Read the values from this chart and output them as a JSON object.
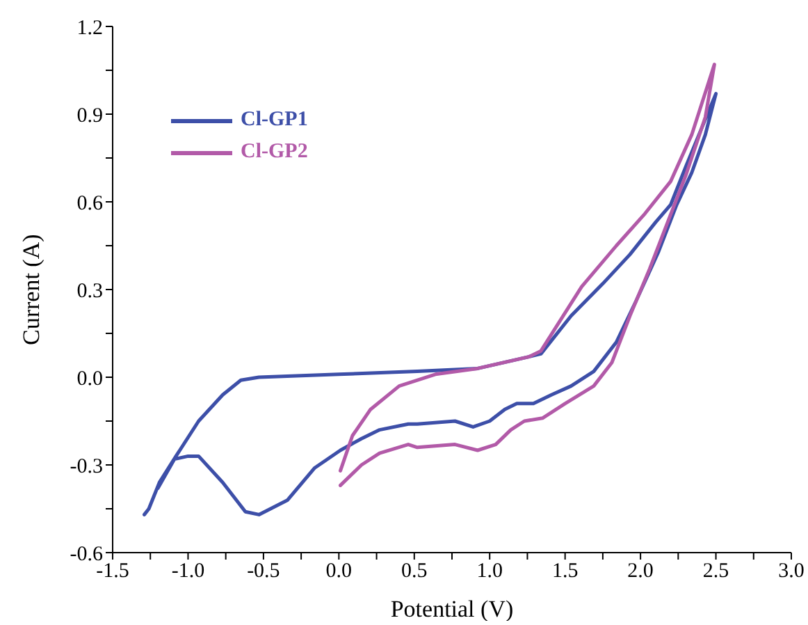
{
  "chart_data": {
    "type": "line",
    "xlabel": "Potential (V)",
    "ylabel": "Current (A)",
    "xlim": [
      -1.5,
      3.0
    ],
    "ylim": [
      -0.6,
      1.2
    ],
    "xticks": [
      {
        "value": -1.5,
        "label": "-1.5"
      },
      {
        "value": -1.25,
        "label": null
      },
      {
        "value": -1.0,
        "label": "-1.0"
      },
      {
        "value": -0.75,
        "label": null
      },
      {
        "value": -0.5,
        "label": "-0.5"
      },
      {
        "value": -0.25,
        "label": null
      },
      {
        "value": 0,
        "label": "0.0"
      },
      {
        "value": 0.25,
        "label": null
      },
      {
        "value": 0.5,
        "label": "0.5"
      },
      {
        "value": 0.75,
        "label": null
      },
      {
        "value": 1.0,
        "label": "1.0"
      },
      {
        "value": 1.25,
        "label": null
      },
      {
        "value": 1.5,
        "label": "1.5"
      },
      {
        "value": 1.75,
        "label": null
      },
      {
        "value": 2.0,
        "label": "2.0"
      },
      {
        "value": 2.25,
        "label": null
      },
      {
        "value": 2.5,
        "label": "2.5"
      },
      {
        "value": 2.75,
        "label": null
      },
      {
        "value": 3.0,
        "label": "3.0"
      }
    ],
    "yticks": [
      {
        "value": -0.6,
        "label": "-0.6"
      },
      {
        "value": -0.45,
        "label": null
      },
      {
        "value": -0.3,
        "label": "-0.3"
      },
      {
        "value": -0.15,
        "label": null
      },
      {
        "value": 0,
        "label": "0.0"
      },
      {
        "value": 0.15,
        "label": null
      },
      {
        "value": 0.3,
        "label": "0.3"
      },
      {
        "value": 0.45,
        "label": null
      },
      {
        "value": 0.6,
        "label": "0.6"
      },
      {
        "value": 0.75,
        "label": null
      },
      {
        "value": 0.9,
        "label": "0.9"
      },
      {
        "value": 1.05,
        "label": null
      },
      {
        "value": 1.2,
        "label": "1.2"
      }
    ],
    "grid": false,
    "legend": "top left",
    "marker": "none",
    "line_style": "solid",
    "series": [
      {
        "name": "Cl-GP1",
        "color": "#3d4fa8",
        "x": [
          -1.29,
          -1.26,
          -1.19,
          -1.08,
          -0.93,
          -0.77,
          -0.65,
          -0.53,
          0.0,
          0.52,
          0.92,
          1.26,
          1.34,
          1.54,
          1.75,
          1.93,
          2.1,
          2.2,
          2.3,
          2.5,
          2.43,
          2.34,
          2.24,
          2.12,
          1.97,
          1.84,
          1.69,
          1.54,
          1.41,
          1.29,
          1.18,
          1.1,
          1.0,
          0.89,
          0.77,
          0.52,
          0.46,
          0.27,
          0.15,
          0.01,
          -0.16,
          -0.34,
          -0.53,
          -0.62,
          -0.77,
          -0.93,
          -1.0,
          -1.09,
          -1.2
        ],
        "values": [
          -0.47,
          -0.45,
          -0.36,
          -0.27,
          -0.15,
          -0.06,
          -0.01,
          0.0,
          0.01,
          0.02,
          0.03,
          0.07,
          0.08,
          0.21,
          0.32,
          0.42,
          0.53,
          0.59,
          0.72,
          0.97,
          0.83,
          0.7,
          0.59,
          0.43,
          0.26,
          0.12,
          0.02,
          -0.03,
          -0.06,
          -0.09,
          -0.09,
          -0.11,
          -0.15,
          -0.17,
          -0.15,
          -0.16,
          -0.16,
          -0.18,
          -0.21,
          -0.25,
          -0.31,
          -0.42,
          -0.47,
          -0.46,
          -0.36,
          -0.27,
          -0.27,
          -0.28,
          -0.38
        ]
      },
      {
        "name": "Cl-GP2",
        "color": "#b25aa8",
        "x": [
          0.01,
          0.09,
          0.21,
          0.4,
          0.64,
          0.92,
          1.26,
          1.34,
          1.61,
          1.84,
          2.03,
          2.2,
          2.34,
          2.49,
          2.43,
          2.3,
          2.18,
          2.06,
          1.93,
          1.81,
          1.69,
          1.5,
          1.35,
          1.23,
          1.14,
          1.04,
          0.92,
          0.77,
          0.52,
          0.46,
          0.27,
          0.15,
          0.01
        ],
        "values": [
          -0.32,
          -0.2,
          -0.11,
          -0.03,
          0.01,
          0.03,
          0.07,
          0.09,
          0.31,
          0.45,
          0.56,
          0.67,
          0.83,
          1.07,
          0.89,
          0.69,
          0.53,
          0.37,
          0.21,
          0.05,
          -0.03,
          -0.09,
          -0.14,
          -0.15,
          -0.18,
          -0.23,
          -0.25,
          -0.23,
          -0.24,
          -0.23,
          -0.26,
          -0.3,
          -0.37
        ]
      }
    ]
  }
}
